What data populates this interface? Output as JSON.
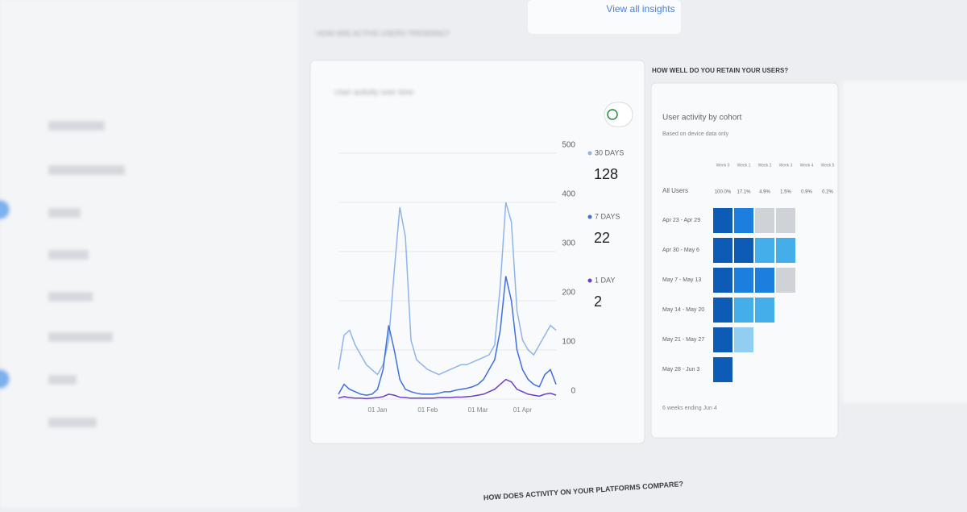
{
  "header": {
    "link": "View all insights"
  },
  "activity": {
    "section_title": "HOW ARE ACTIVE USERS TRENDING?",
    "chart_data": {
      "type": "line",
      "title": "User activity over time",
      "categories": [
        null,
        null,
        null,
        null,
        null,
        null,
        null,
        "01 Jan",
        null,
        null,
        null,
        null,
        null,
        null,
        null,
        null,
        "01 Feb",
        null,
        null,
        null,
        null,
        null,
        null,
        null,
        null,
        "01 Mar",
        null,
        null,
        null,
        null,
        null,
        null,
        null,
        "01 Apr",
        null,
        null,
        null,
        null,
        null,
        null
      ],
      "series": [
        {
          "name": "30 DAYS",
          "color": "#8fb4ec",
          "value_label": "128",
          "values": [
            60,
            130,
            140,
            110,
            90,
            70,
            60,
            50,
            70,
            120,
            260,
            390,
            330,
            120,
            80,
            70,
            60,
            55,
            50,
            55,
            60,
            65,
            70,
            70,
            75,
            80,
            85,
            90,
            110,
            230,
            400,
            360,
            180,
            120,
            100,
            90,
            110,
            130,
            150,
            140
          ]
        },
        {
          "name": "7 DAYS",
          "color": "#3f6fe0",
          "value_label": "22",
          "values": [
            10,
            30,
            20,
            15,
            10,
            8,
            10,
            20,
            60,
            150,
            100,
            40,
            20,
            15,
            12,
            10,
            10,
            10,
            12,
            15,
            15,
            18,
            20,
            22,
            25,
            30,
            40,
            60,
            80,
            140,
            250,
            200,
            100,
            60,
            40,
            30,
            25,
            50,
            60,
            30
          ]
        },
        {
          "name": "1 DAY",
          "color": "#6a3fd0",
          "value_label": "2",
          "values": [
            2,
            5,
            3,
            2,
            2,
            1,
            2,
            3,
            5,
            10,
            8,
            4,
            3,
            2,
            2,
            2,
            2,
            2,
            3,
            3,
            3,
            4,
            4,
            5,
            6,
            8,
            10,
            15,
            20,
            30,
            40,
            35,
            20,
            15,
            10,
            8,
            6,
            10,
            12,
            8
          ]
        }
      ],
      "ylim": [
        0,
        500
      ],
      "yticks": [
        0,
        100,
        200,
        300,
        400,
        500
      ],
      "grid": true
    }
  },
  "retention": {
    "section_title": "HOW WELL DO YOU RETAIN YOUR USERS?",
    "card_title": "User activity by cohort",
    "card_subtitle": "Based on device data only",
    "columns": [
      "Week 0",
      "Week 1",
      "Week 2",
      "Week 3",
      "Week 4",
      "Week 5"
    ],
    "all_users": {
      "label": "All Users",
      "values": [
        "100.0%",
        "17.1%",
        "4.9%",
        "1.5%",
        "0.9%",
        "0.2%"
      ]
    },
    "rows": [
      {
        "label": "Apr 23 - Apr 29",
        "values": [
          100,
          25,
          0.5,
          0.4
        ]
      },
      {
        "label": "Apr 30 - May 6",
        "values": [
          100,
          60,
          8,
          6
        ]
      },
      {
        "label": "May 7 - May 13",
        "values": [
          100,
          40,
          20,
          0.3
        ]
      },
      {
        "label": "May 14 - May 20",
        "values": [
          100,
          8,
          6
        ]
      },
      {
        "label": "May 21 - May 27",
        "values": [
          100,
          2
        ]
      },
      {
        "label": "May 28 - Jun 3",
        "values": [
          100
        ]
      }
    ],
    "footer": "6 weeks ending Jun 4"
  },
  "platforms": {
    "section_title": "HOW DOES ACTIVITY ON YOUR PLATFORMS COMPARE?"
  }
}
